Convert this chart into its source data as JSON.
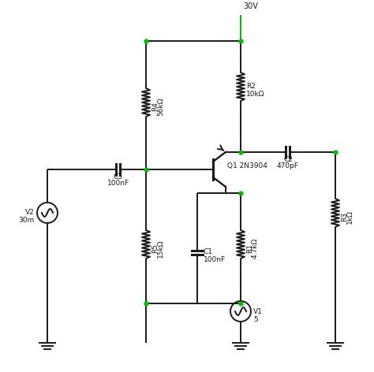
{
  "background": "#ffffff",
  "wire_color": "#1a1a1a",
  "node_color": "#00bb00",
  "component_color": "#1a1a1a",
  "label_color": "#1a1a1a",
  "vcc_label": "30V",
  "R1_label": "R1",
  "R1_val": "4.7kΩ",
  "R2_label": "R2",
  "R2_val": "10kΩ",
  "R3_label": "R3",
  "R3_val": "1kΩ",
  "R4_label": "R4",
  "R4_val": "56kΩ",
  "R5_label": "R5",
  "R5_val": "15kΩ",
  "C1_label": "C1",
  "C1_val": "100nF",
  "C2_label": "C2",
  "C2_val": "470pF",
  "C3_label": "C3",
  "C3_val": "100nF",
  "Q1_label": "Q1 2N3904",
  "V1_label": "V1",
  "V1_val": "5",
  "V2_label": "V2",
  "V2_val": "30m"
}
